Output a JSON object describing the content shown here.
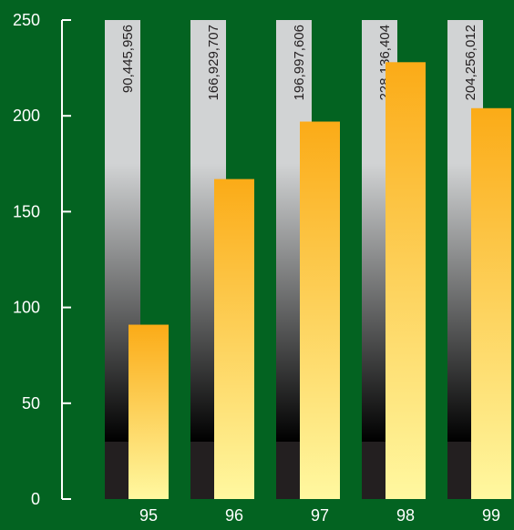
{
  "chart_data": {
    "type": "bar",
    "title": "",
    "xlabel": "",
    "ylabel": "",
    "categories": [
      "95",
      "96",
      "97",
      "98",
      "99"
    ],
    "values": [
      91,
      167,
      197,
      228,
      204
    ],
    "value_labels": [
      "90,445,956",
      "166,929,707",
      "196,997,606",
      "228,136,404",
      "204,256,012"
    ],
    "ylim": [
      0,
      250
    ],
    "yticks": [
      "0",
      "50",
      "100",
      "150",
      "200",
      "250"
    ],
    "grid": false,
    "legend": "none",
    "colors": {
      "background": "#036321",
      "axis": "#ffffff",
      "axis_text": "#ffffff",
      "bar_top": "#fbab17",
      "bar_bottom": "#fff8a0",
      "backdrop_top": "#d1d3d4",
      "backdrop_bottom": "#000000",
      "backdrop_base": "#231f20",
      "value_label_text": "#231f20"
    }
  }
}
